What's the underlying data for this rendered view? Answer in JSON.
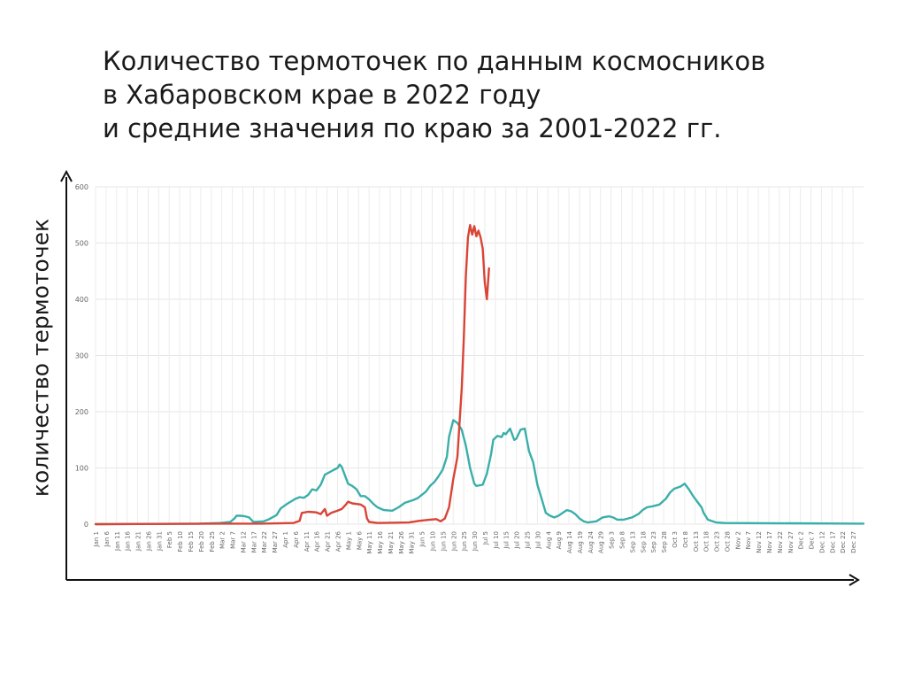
{
  "chart_data": {
    "type": "line",
    "title_lines": [
      "Количество термоточек по данным космосников",
      "в Хабаровском крае в 2022 году",
      "и средние значения по краю за 2001-2022 гг."
    ],
    "ylabel": "количество термоточек",
    "xlabel": "",
    "ylim": [
      0,
      600
    ],
    "yticks": [
      0,
      100,
      200,
      300,
      400,
      500,
      600
    ],
    "grid": true,
    "x_tick_labels": [
      "Jan 1",
      "Jan 6",
      "Jan 11",
      "Jan 16",
      "Jan 21",
      "Jan 26",
      "Jan 31",
      "Feb 5",
      "Feb 10",
      "Feb 15",
      "Feb 20",
      "Feb 25",
      "Mar 2",
      "Mar 7",
      "Mar 12",
      "Mar 17",
      "Mar 22",
      "Mar 27",
      "Apr 1",
      "Apr 6",
      "Apr 11",
      "Apr 16",
      "Apr 21",
      "Apr 26",
      "May 1",
      "May 6",
      "May 11",
      "May 16",
      "May 21",
      "May 26",
      "May 31",
      "Jun 5",
      "Jun 10",
      "Jun 15",
      "Jun 20",
      "Jun 25",
      "Jun 30",
      "Jul 5",
      "Jul 10",
      "Jul 15",
      "Jul 20",
      "Jul 25",
      "Jul 30",
      "Aug 4",
      "Aug 9",
      "Aug 14",
      "Aug 19",
      "Aug 24",
      "Aug 29",
      "Sep 3",
      "Sep 8",
      "Sep 13",
      "Sep 18",
      "Sep 23",
      "Sep 28",
      "Oct 3",
      "Oct 8",
      "Oct 13",
      "Oct 18",
      "Oct 23",
      "Oct 28",
      "Nov 2",
      "Nov 7",
      "Nov 12",
      "Nov 17",
      "Nov 22",
      "Nov 27",
      "Dec 2",
      "Dec 7",
      "Dec 12",
      "Dec 17",
      "Dec 22",
      "Dec 27"
    ],
    "series": [
      {
        "color": "#3aafa9",
        "points": [
          [
            1,
            0
          ],
          [
            50,
            1
          ],
          [
            60,
            2
          ],
          [
            65,
            4
          ],
          [
            67,
            10
          ],
          [
            68,
            15
          ],
          [
            70,
            15
          ],
          [
            72,
            14
          ],
          [
            74,
            12
          ],
          [
            75,
            8
          ],
          [
            76,
            4
          ],
          [
            81,
            5
          ],
          [
            83,
            8
          ],
          [
            87,
            16
          ],
          [
            89,
            28
          ],
          [
            92,
            36
          ],
          [
            96,
            45
          ],
          [
            98,
            48
          ],
          [
            100,
            47
          ],
          [
            102,
            52
          ],
          [
            104,
            62
          ],
          [
            106,
            60
          ],
          [
            108,
            70
          ],
          [
            110,
            88
          ],
          [
            112,
            92
          ],
          [
            114,
            96
          ],
          [
            116,
            100
          ],
          [
            117,
            106
          ],
          [
            118,
            102
          ],
          [
            119,
            92
          ],
          [
            121,
            72
          ],
          [
            123,
            68
          ],
          [
            125,
            62
          ],
          [
            127,
            50
          ],
          [
            129,
            50
          ],
          [
            131,
            44
          ],
          [
            133,
            36
          ],
          [
            135,
            30
          ],
          [
            138,
            25
          ],
          [
            142,
            24
          ],
          [
            145,
            30
          ],
          [
            148,
            38
          ],
          [
            152,
            43
          ],
          [
            154,
            46
          ],
          [
            158,
            58
          ],
          [
            160,
            68
          ],
          [
            162,
            75
          ],
          [
            164,
            85
          ],
          [
            166,
            97
          ],
          [
            168,
            120
          ],
          [
            169,
            155
          ],
          [
            171,
            185
          ],
          [
            173,
            180
          ],
          [
            175,
            168
          ],
          [
            177,
            140
          ],
          [
            179,
            100
          ],
          [
            181,
            72
          ],
          [
            182,
            68
          ],
          [
            185,
            70
          ],
          [
            187,
            90
          ],
          [
            189,
            125
          ],
          [
            190,
            150
          ],
          [
            192,
            157
          ],
          [
            194,
            155
          ],
          [
            195,
            162
          ],
          [
            196,
            160
          ],
          [
            197,
            165
          ],
          [
            198,
            170
          ],
          [
            199,
            160
          ],
          [
            200,
            150
          ],
          [
            201,
            152
          ],
          [
            202,
            160
          ],
          [
            203,
            168
          ],
          [
            205,
            170
          ],
          [
            206,
            150
          ],
          [
            207,
            130
          ],
          [
            209,
            110
          ],
          [
            211,
            70
          ],
          [
            213,
            45
          ],
          [
            215,
            20
          ],
          [
            217,
            15
          ],
          [
            219,
            12
          ],
          [
            221,
            15
          ],
          [
            223,
            20
          ],
          [
            225,
            25
          ],
          [
            227,
            23
          ],
          [
            229,
            18
          ],
          [
            231,
            10
          ],
          [
            233,
            5
          ],
          [
            235,
            3
          ],
          [
            239,
            5
          ],
          [
            242,
            12
          ],
          [
            245,
            14
          ],
          [
            247,
            12
          ],
          [
            249,
            8
          ],
          [
            252,
            8
          ],
          [
            256,
            12
          ],
          [
            259,
            18
          ],
          [
            261,
            25
          ],
          [
            263,
            30
          ],
          [
            266,
            32
          ],
          [
            269,
            35
          ],
          [
            272,
            45
          ],
          [
            274,
            56
          ],
          [
            276,
            63
          ],
          [
            279,
            67
          ],
          [
            281,
            72
          ],
          [
            283,
            62
          ],
          [
            285,
            50
          ],
          [
            287,
            40
          ],
          [
            289,
            30
          ],
          [
            290,
            20
          ],
          [
            292,
            8
          ],
          [
            296,
            3
          ],
          [
            300,
            2
          ],
          [
            366,
            1
          ]
        ]
      },
      {
        "color": "#d94436",
        "points": [
          [
            1,
            0
          ],
          [
            60,
            1
          ],
          [
            80,
            1
          ],
          [
            95,
            2
          ],
          [
            98,
            6
          ],
          [
            99,
            20
          ],
          [
            102,
            22
          ],
          [
            106,
            21
          ],
          [
            108,
            18
          ],
          [
            110,
            27
          ],
          [
            111,
            15
          ],
          [
            113,
            20
          ],
          [
            116,
            24
          ],
          [
            118,
            27
          ],
          [
            120,
            35
          ],
          [
            121,
            40
          ],
          [
            123,
            37
          ],
          [
            127,
            35
          ],
          [
            129,
            30
          ],
          [
            130,
            10
          ],
          [
            131,
            4
          ],
          [
            135,
            2
          ],
          [
            150,
            3
          ],
          [
            155,
            6
          ],
          [
            160,
            8
          ],
          [
            163,
            9
          ],
          [
            165,
            5
          ],
          [
            167,
            10
          ],
          [
            169,
            30
          ],
          [
            170,
            55
          ],
          [
            171,
            80
          ],
          [
            172,
            100
          ],
          [
            173,
            120
          ],
          [
            174,
            180
          ],
          [
            175,
            240
          ],
          [
            176,
            330
          ],
          [
            177,
            440
          ],
          [
            178,
            510
          ],
          [
            179,
            532
          ],
          [
            180,
            515
          ],
          [
            181,
            530
          ],
          [
            182,
            512
          ],
          [
            183,
            522
          ],
          [
            184,
            510
          ],
          [
            185,
            490
          ],
          [
            186,
            430
          ],
          [
            187,
            400
          ],
          [
            188,
            455
          ]
        ]
      }
    ]
  }
}
